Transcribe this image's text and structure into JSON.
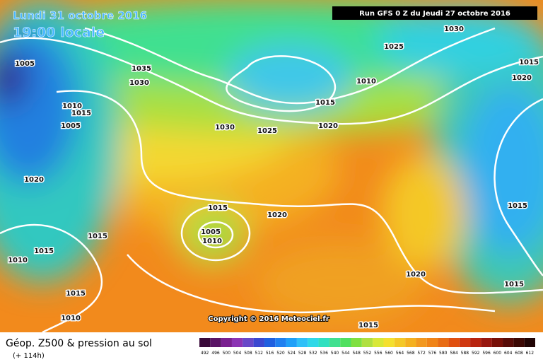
{
  "header": {
    "date": "Lundi 31 octobre 2016",
    "time": "19:00 locale",
    "run": "Run GFS 0 Z du Jeudi 27 octobre 2016"
  },
  "isobar_labels": [
    "1005",
    "1035",
    "1030",
    "1010",
    "1015",
    "1005",
    "1020",
    "1015",
    "1015",
    "1010",
    "1015",
    "1010",
    "1015",
    "1005",
    "1010",
    "1020",
    "1030",
    "1025",
    "1020",
    "1015",
    "1010",
    "1025",
    "1030",
    "1015",
    "1020",
    "1015",
    "1020",
    "1015",
    "1015"
  ],
  "copyright": "Copyright © 2016 Meteociel.fr",
  "legend": {
    "title": "Géop. Z500 & pression au sol",
    "lead": "(+ 114h)",
    "scale": [
      492,
      496,
      500,
      504,
      508,
      512,
      516,
      520,
      524,
      528,
      532,
      536,
      540,
      544,
      548,
      552,
      556,
      560,
      564,
      568,
      572,
      576,
      580,
      584,
      588,
      592,
      596,
      600,
      604,
      608,
      612
    ]
  }
}
